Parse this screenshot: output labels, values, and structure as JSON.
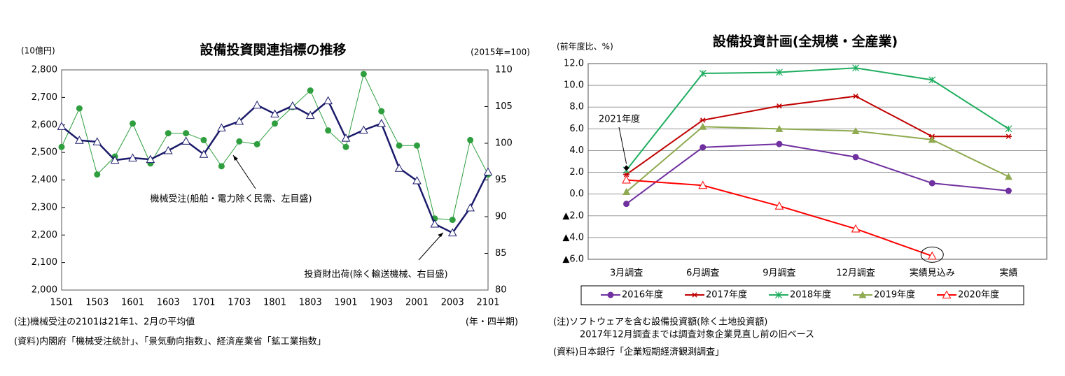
{
  "chart_data": [
    {
      "type": "line",
      "title": "設備投資関連指標の推移",
      "y_label": "(10億円)",
      "y2_label": "(2015年=100)",
      "x_label": "(年・四半期)",
      "categories": [
        "1501",
        null,
        "1503",
        null,
        "1601",
        null,
        "1603",
        null,
        "1701",
        null,
        "1703",
        null,
        "1801",
        null,
        "1803",
        null,
        "1901",
        null,
        "1903",
        null,
        "2001",
        null,
        "2003",
        null,
        "2101"
      ],
      "series": [
        {
          "name": "機械受注(船舶・電力除く民需、左目盛)",
          "color": "#2e9e3e",
          "marker": "circle",
          "values": [
            2520,
            2660,
            2420,
            2485,
            2605,
            2460,
            2570,
            2570,
            2545,
            2450,
            2540,
            2530,
            2605,
            2665,
            2725,
            2580,
            2520,
            2785,
            2650,
            2525,
            2525,
            2260,
            2255,
            2545,
            2420
          ]
        },
        {
          "name": "投資財出荷(除く輸送機械、右目盛)",
          "color": "#1b1b6b",
          "marker": "triangle-open",
          "axis": "y2",
          "values": [
            102.3,
            100.4,
            100.2,
            97.7,
            98.0,
            97.8,
            99.0,
            100.3,
            98.5,
            102.1,
            103.0,
            105.2,
            104.0,
            105.1,
            103.8,
            105.8,
            100.7,
            101.8,
            102.7,
            96.6,
            94.9,
            89.0,
            87.8,
            91.2,
            96.1
          ]
        }
      ],
      "ylim": [
        2000,
        2800
      ],
      "yticks": [
        {
          "value": 2000,
          "label": "2,000"
        },
        {
          "value": 2100,
          "label": "2,100"
        },
        {
          "value": 2200,
          "label": "2,200"
        },
        {
          "value": 2300,
          "label": "2,300"
        },
        {
          "value": 2400,
          "label": "2,400"
        },
        {
          "value": 2500,
          "label": "2,500"
        },
        {
          "value": 2600,
          "label": "2,600"
        },
        {
          "value": 2700,
          "label": "2,700"
        },
        {
          "value": 2800,
          "label": "2,800"
        }
      ],
      "y2lim": [
        80,
        110
      ],
      "y2ticks": [
        80,
        85,
        90,
        95,
        100,
        105,
        110
      ],
      "grid": false,
      "notes": [
        "(注)機械受注の2101は21年1、2月の平均値",
        "(資料)内閣府「機械受注統計」、「景気動向指数」、経済産業省「鉱工業指数」"
      ]
    },
    {
      "type": "line",
      "title": "設備投資計画(全規模・全産業)",
      "y_label": "(前年度比、%)",
      "categories": [
        "3月調査",
        "6月調査",
        "9月調査",
        "12月調査",
        "実績見込み",
        "実績"
      ],
      "series": [
        {
          "name": "2016年度",
          "color": "#7030a0",
          "marker": "circle",
          "values": [
            -0.9,
            4.3,
            4.6,
            3.4,
            1.0,
            0.3
          ]
        },
        {
          "name": "2017年度",
          "color": "#c00000",
          "marker": "star",
          "values": [
            1.8,
            6.8,
            8.1,
            9.0,
            5.3,
            5.3
          ]
        },
        {
          "name": "2018年度",
          "color": "#1fae5f",
          "marker": "xstar",
          "values": [
            2.2,
            11.1,
            11.2,
            11.6,
            10.5,
            6.0
          ]
        },
        {
          "name": "2019年度",
          "color": "#8faa50",
          "marker": "triangle",
          "values": [
            0.2,
            6.2,
            6.0,
            5.8,
            5.0,
            1.6
          ]
        },
        {
          "name": "2020年度",
          "color": "#ff0000",
          "marker": "triangle-open",
          "values": [
            1.3,
            0.8,
            -1.1,
            -3.2,
            -5.7,
            null
          ]
        }
      ],
      "ylim": [
        -6,
        12
      ],
      "yticks": [
        {
          "value": -6,
          "label": "▲6.0"
        },
        {
          "value": -4,
          "label": "▲4.0"
        },
        {
          "value": -2,
          "label": "▲2.0"
        },
        {
          "value": 0,
          "label": "0.0"
        },
        {
          "value": 2,
          "label": "2.0"
        },
        {
          "value": 4,
          "label": "4.0"
        },
        {
          "value": 6,
          "label": "6.0"
        },
        {
          "value": 8,
          "label": "8.0"
        },
        {
          "value": 10,
          "label": "10.0"
        },
        {
          "value": 12,
          "label": "12.0"
        }
      ],
      "grid": true,
      "legend": "bottom",
      "annotation": {
        "text": "2021年度",
        "value": 2.4
      },
      "notes": [
        "(注)ソフトウェアを含む設備投資額(除く土地投資額)",
        "2017年12月調査までは調査対象企業見直し前の旧ベース",
        "(資料)日本銀行「企業短期経済観測調査」"
      ]
    }
  ]
}
